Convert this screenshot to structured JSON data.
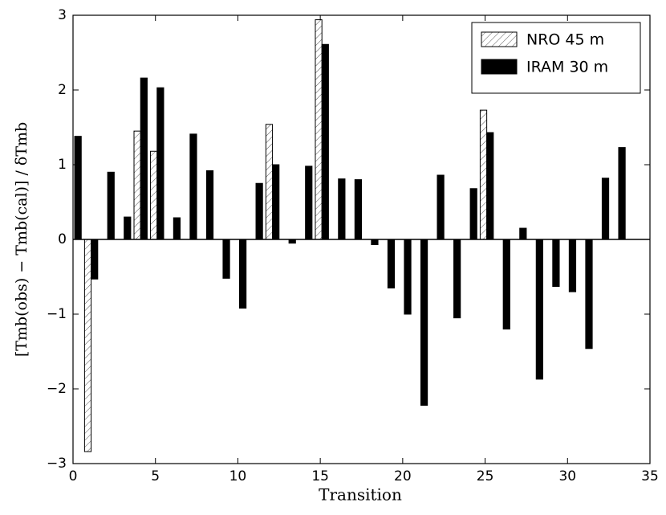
{
  "chart_data": {
    "type": "bar",
    "xlabel": "Transition",
    "ylabel": "[Tmb(obs) − Tmb(cal)] / δTmb",
    "x": [
      0,
      1,
      2,
      3,
      4,
      5,
      6,
      7,
      8,
      9,
      10,
      11,
      12,
      13,
      14,
      15,
      16,
      17,
      18,
      19,
      20,
      21,
      22,
      23,
      24,
      25,
      26,
      27,
      28,
      29,
      30,
      31,
      32,
      33
    ],
    "series": [
      {
        "name": "NRO 45 m",
        "color": "#ffffff",
        "hatch": true,
        "values": [
          null,
          -2.84,
          null,
          null,
          1.45,
          1.18,
          null,
          null,
          null,
          null,
          null,
          null,
          1.54,
          null,
          null,
          2.94,
          null,
          null,
          null,
          null,
          null,
          null,
          null,
          null,
          null,
          1.73,
          null,
          null,
          null,
          null,
          null,
          null,
          null,
          null
        ]
      },
      {
        "name": "IRAM 30 m",
        "color": "#000000",
        "hatch": false,
        "values": [
          1.38,
          -0.53,
          0.9,
          0.3,
          2.16,
          2.03,
          0.29,
          1.41,
          0.92,
          -0.52,
          -0.92,
          0.75,
          1.0,
          -0.05,
          0.98,
          2.61,
          0.81,
          0.8,
          -0.07,
          -0.65,
          -1.0,
          -2.22,
          0.86,
          -1.05,
          0.68,
          1.43,
          -1.2,
          0.15,
          -1.87,
          -0.63,
          -0.7,
          -1.46,
          0.82,
          1.23
        ]
      }
    ],
    "xlim": [
      0,
      35
    ],
    "xticks": [
      0,
      5,
      10,
      15,
      20,
      25,
      30,
      35
    ],
    "ylim": [
      -3,
      3
    ],
    "yticks": [
      {
        "value": -3,
        "label": "−3"
      },
      {
        "value": -2,
        "label": "−2"
      },
      {
        "value": -1,
        "label": "−1"
      },
      0,
      1,
      2,
      3
    ],
    "grid": false,
    "legend": "upper right"
  }
}
